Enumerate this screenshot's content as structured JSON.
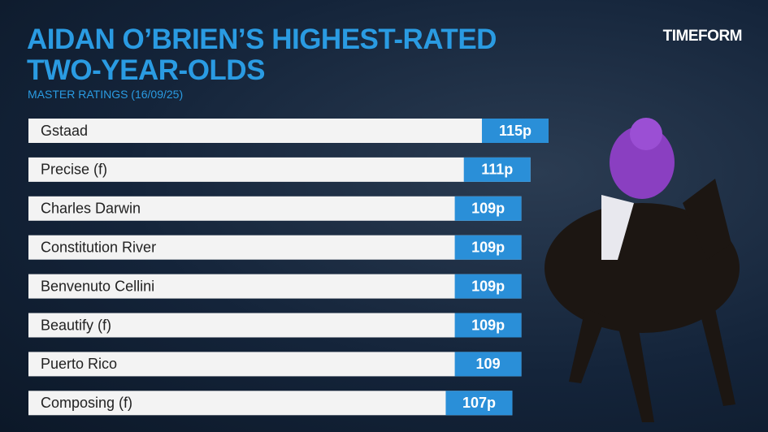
{
  "chart_data": {
    "type": "bar",
    "orientation": "horizontal",
    "title": "AIDAN O’BRIEN’S HIGHEST-RATED TWO-YEAR-OLDS",
    "subtitle": "MASTER RATINGS (16/09/25)",
    "brand": "TIMEFORM",
    "categories": [
      "Gstaad",
      "Precise (f)",
      "Charles Darwin",
      "Constitution River",
      "Benvenuto Cellini",
      "Beautify (f)",
      "Puerto Rico",
      "Composing (f)"
    ],
    "values": [
      115,
      111,
      109,
      109,
      109,
      109,
      109,
      107
    ],
    "value_labels": [
      "115p",
      "111p",
      "109p",
      "109p",
      "109p",
      "109p",
      "109",
      "107p"
    ],
    "color": "#2a8fd8"
  }
}
